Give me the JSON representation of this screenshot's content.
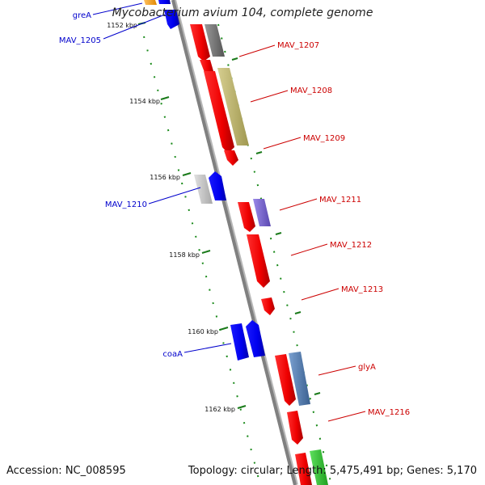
{
  "title": "Mycobacterium avium 104, complete genome",
  "footer": {
    "accession": "Accession: NC_008595",
    "summary": "Topology: circular; Length: 5,475,491 bp; Genes: 5,170"
  },
  "colors": {
    "backbone": "#808080",
    "forward_gene": "#ff0000",
    "reverse_gene": "#0000ff",
    "forward_label": "#cc0000",
    "reverse_label": "#0000cc",
    "tick": "#1a7a1a"
  },
  "ruler": {
    "ticks": [
      {
        "kbp": 1152,
        "label": "1152 kbp"
      },
      {
        "kbp": 1154,
        "label": "1154 kbp"
      },
      {
        "kbp": 1156,
        "label": "1156 kbp"
      },
      {
        "kbp": 1158,
        "label": "1158 kbp"
      },
      {
        "kbp": 1160,
        "label": "1160 kbp"
      },
      {
        "kbp": 1162,
        "label": "1162 kbp"
      }
    ]
  },
  "labels": {
    "left": [
      {
        "text": "greA"
      },
      {
        "text": "MAV_1205"
      },
      {
        "text": "MAV_1210"
      },
      {
        "text": "coaA"
      }
    ],
    "right": [
      {
        "text": "MAV_1207"
      },
      {
        "text": "MAV_1208"
      },
      {
        "text": "MAV_1209"
      },
      {
        "text": "MAV_1211"
      },
      {
        "text": "MAV_1212"
      },
      {
        "text": "MAV_1213"
      },
      {
        "text": "glyA"
      },
      {
        "text": "MAV_1216"
      }
    ]
  }
}
